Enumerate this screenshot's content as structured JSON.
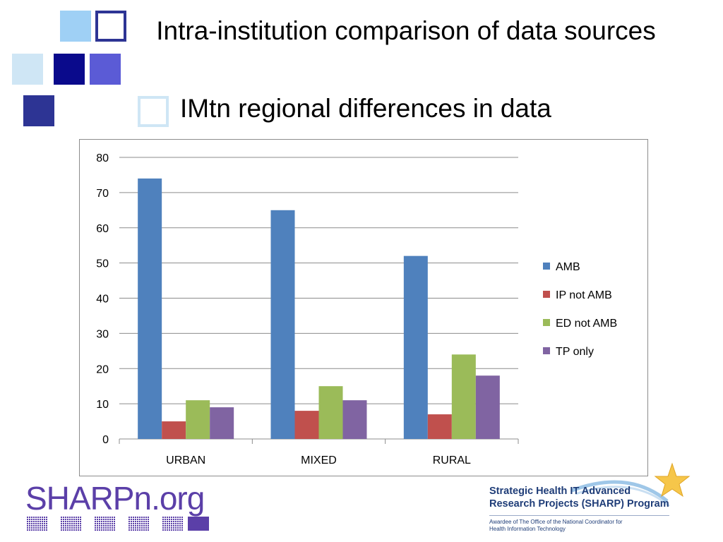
{
  "slide": {
    "title": "Intra-institution comparison of data sources",
    "subtitle": "IMtn regional differences in data"
  },
  "colors": {
    "sq_light_blue": "#9fd0f5",
    "sq_pale_blue": "#cfe6f5",
    "sq_navy": "#0a0a8c",
    "sq_periwinkle": "#5b5bd6",
    "sq_indigo": "#2d3494",
    "sq_outline": "#2d3494"
  },
  "chart_data": {
    "type": "bar",
    "categories": [
      "URBAN",
      "MIXED",
      "RURAL"
    ],
    "series": [
      {
        "name": "AMB",
        "values": [
          74,
          65,
          52
        ],
        "color": "#4f81bd"
      },
      {
        "name": "IP not AMB",
        "values": [
          5,
          8,
          7
        ],
        "color": "#c0504d"
      },
      {
        "name": "ED not AMB",
        "values": [
          11,
          15,
          24
        ],
        "color": "#9bbb59"
      },
      {
        "name": "TP only",
        "values": [
          9,
          11,
          18
        ],
        "color": "#8064a2"
      }
    ],
    "ylim": [
      0,
      80
    ],
    "yticks": [
      0,
      10,
      20,
      30,
      40,
      50,
      60,
      70,
      80
    ],
    "grid": true,
    "legend": "right"
  },
  "footer": {
    "logo_text": "SHARPn.org",
    "program_line1": "Strategic Health IT Advanced",
    "program_line2": "Research Projects (SHARP) Program",
    "award_line1": "Awardee of The Office of the National Coordinator for",
    "award_line2": "Health Information Technology"
  }
}
